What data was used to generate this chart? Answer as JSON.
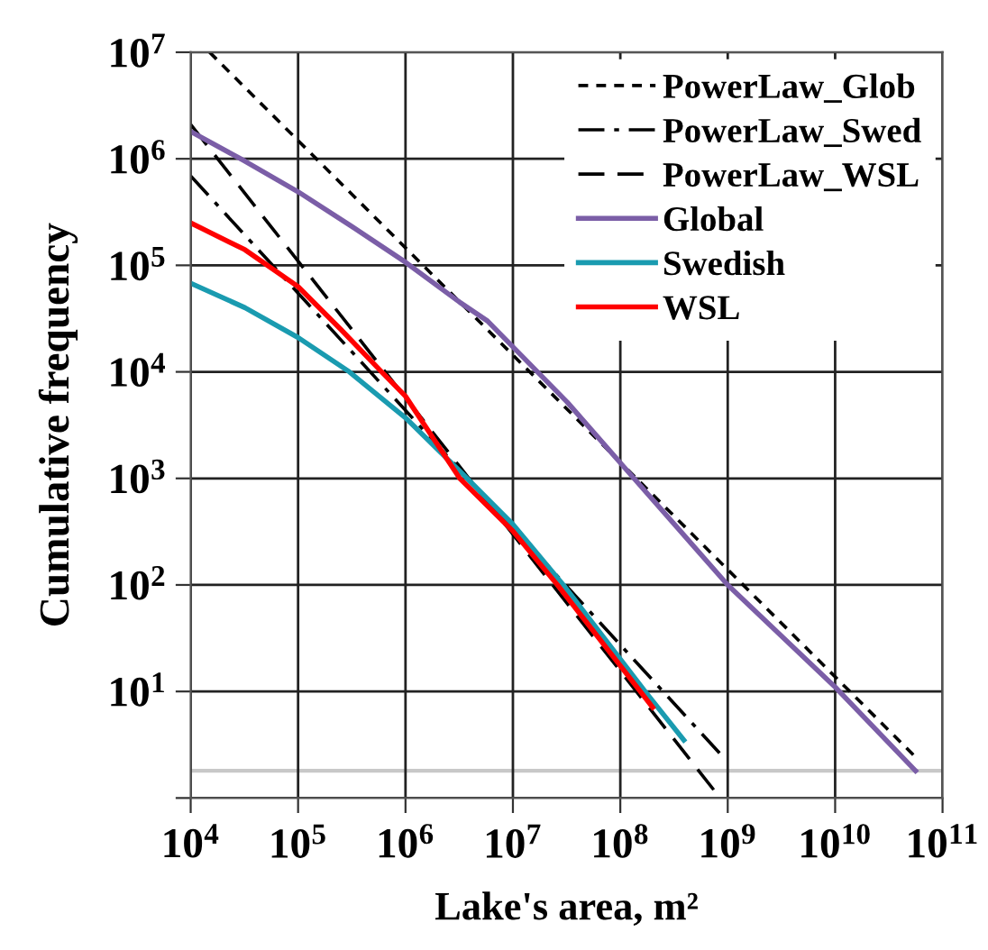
{
  "chart_data": {
    "type": "line",
    "xlabel": "Lake's area, m²",
    "ylabel": "Cumulative frequency",
    "log": "xy",
    "grid": true,
    "legend": "top right",
    "xlim": [
      10000,
      100000000000
    ],
    "ylim": [
      1,
      10000000
    ],
    "xticks": [
      {
        "value": 10000,
        "label": "10$^{4}$"
      },
      {
        "value": 100000,
        "label": "10$^{5}$"
      },
      {
        "value": 1000000,
        "label": "10$^{6}$"
      },
      {
        "value": 10000000,
        "label": "10$^{7}$"
      },
      {
        "value": 100000000,
        "label": "10$^{8}$"
      },
      {
        "value": 1000000000,
        "label": "10$^{9}$"
      },
      {
        "value": 10000000000,
        "label": "10$^{10}$"
      },
      {
        "value": 100000000000,
        "label": "10$^{11}$"
      }
    ],
    "yticks": [
      {
        "value": 1,
        "label": null
      },
      {
        "value": 10,
        "label": "10$^{1}$"
      },
      {
        "value": 100,
        "label": "10$^{2}$"
      },
      {
        "value": 1000,
        "label": "10$^{3}$"
      },
      {
        "value": 10000,
        "label": "10$^{4}$"
      },
      {
        "value": 100000,
        "label": "10$^{5}$"
      },
      {
        "value": 1000000,
        "label": "10$^{6}$"
      },
      {
        "value": 10000000,
        "label": "10$^{7}$"
      }
    ],
    "ref_lines": [
      {
        "axis": "y",
        "value": 1.8,
        "label": null,
        "color": "#c8c8c8"
      }
    ],
    "series": [
      {
        "name": "PowerLaw_Glob",
        "color": "#000000",
        "line_style": "dashed",
        "x": [
          15000,
          59000000000
        ],
        "values": [
          10000000,
          2.3
        ]
      },
      {
        "name": "PowerLaw_Swed",
        "color": "#000000",
        "line_style": "dashdot",
        "x": [
          10000,
          950000000
        ],
        "values": [
          690000,
          2.3
        ]
      },
      {
        "name": "PowerLaw_WSL",
        "color": "#000000",
        "line_style": "longdash",
        "x": [
          10000,
          850000000
        ],
        "values": [
          2100000,
          1
        ]
      },
      {
        "name": "Global",
        "color": "#7b5ea7",
        "line_style": "solid",
        "x": [
          10000,
          32000,
          100000,
          320000,
          1000000,
          3200000,
          5800000,
          32000000,
          100000000,
          1000000000,
          10000000000,
          56000000000
        ],
        "values": [
          1800000,
          950000,
          490000,
          230000,
          107000,
          45000,
          30000,
          5200,
          1400,
          100,
          11,
          1.8
        ]
      },
      {
        "name": "Swedish",
        "color": "#1a9bb0",
        "line_style": "solid",
        "x": [
          10000,
          32000,
          100000,
          300000,
          1000000,
          3500000,
          10000000,
          29500000,
          170000000,
          390000000
        ],
        "values": [
          68000,
          40000,
          21000,
          10000,
          3700,
          1070,
          370,
          100,
          10,
          3.5
        ]
      },
      {
        "name": "WSL",
        "color": "#ff0000",
        "line_style": "solid",
        "x": [
          10000,
          32000,
          100000,
          250000,
          600000,
          1000000,
          3200000,
          10000000,
          26000000,
          200000000
        ],
        "values": [
          250000,
          140000,
          63000,
          25000,
          10000,
          5900,
          1000,
          320,
          100,
          7.1
        ]
      }
    ]
  }
}
